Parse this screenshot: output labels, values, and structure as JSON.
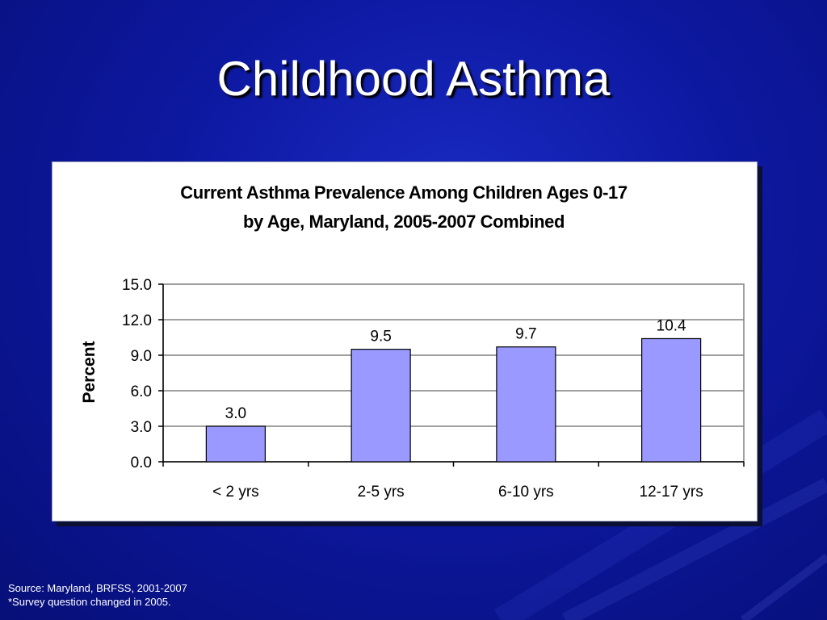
{
  "slide": {
    "title": "Childhood Asthma",
    "source": "Source:  Maryland, BRFSS, 2001-2007",
    "note": "*Survey question changed in 2005."
  },
  "colors": {
    "background": "#0d18a0",
    "bar_fill": "#9999ff",
    "bar_stroke": "#000000"
  },
  "chart_data": {
    "type": "bar",
    "title_line1": "Current Asthma Prevalence Among Children Ages 0-17",
    "title_line2": "by Age, Maryland, 2005-2007 Combined",
    "categories": [
      "< 2 yrs",
      "2-5 yrs",
      "6-10 yrs",
      "12-17 yrs"
    ],
    "values": [
      3.0,
      9.5,
      9.7,
      10.4
    ],
    "value_labels": [
      "3.0",
      "9.5",
      "9.7",
      "10.4"
    ],
    "ylabel": "Percent",
    "xlabel": "",
    "ylim": [
      0,
      15
    ],
    "yticks": [
      "0.0",
      "3.0",
      "6.0",
      "9.0",
      "12.0",
      "15.0"
    ],
    "grid": true,
    "legend": "none"
  }
}
